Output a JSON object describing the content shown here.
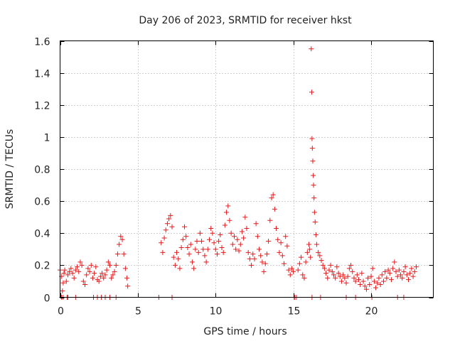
{
  "chart_data": {
    "type": "scatter",
    "title": "Day 206 of 2023, SRMTID for receiver hkst",
    "xlabel": "GPS time / hours",
    "ylabel": "SRMTID / TECUs",
    "xlim": [
      0,
      24
    ],
    "ylim": [
      0,
      1.6
    ],
    "xticks": [
      0,
      5,
      10,
      15,
      20
    ],
    "yticks": [
      0,
      0.2,
      0.4,
      0.6,
      0.8,
      1,
      1.2,
      1.4,
      1.6
    ],
    "ytick_labels": [
      "0",
      "0.2",
      "0.4",
      "0.6",
      "0.8",
      "1",
      "1.2",
      "1.4",
      "1.6"
    ],
    "grid": true,
    "marker": "plus",
    "series": [
      {
        "name": "SRMTID",
        "color": "#e41a1c",
        "points": [
          [
            0.0,
            0.17
          ],
          [
            0.1,
            0.13
          ],
          [
            0.15,
            0.04
          ],
          [
            0.2,
            0.09
          ],
          [
            0.25,
            0.15
          ],
          [
            0.3,
            0.17
          ],
          [
            0.4,
            0.1
          ],
          [
            0.5,
            0.14
          ],
          [
            0.6,
            0.16
          ],
          [
            0.7,
            0.18
          ],
          [
            0.8,
            0.15
          ],
          [
            0.9,
            0.12
          ],
          [
            1.0,
            0.17
          ],
          [
            1.1,
            0.19
          ],
          [
            1.2,
            0.16
          ],
          [
            1.3,
            0.22
          ],
          [
            1.4,
            0.2
          ],
          [
            1.5,
            0.1
          ],
          [
            1.6,
            0.08
          ],
          [
            1.7,
            0.14
          ],
          [
            1.8,
            0.18
          ],
          [
            1.9,
            0.16
          ],
          [
            2.0,
            0.2
          ],
          [
            2.1,
            0.12
          ],
          [
            2.2,
            0.15
          ],
          [
            2.3,
            0.19
          ],
          [
            2.4,
            0.11
          ],
          [
            2.5,
            0.1
          ],
          [
            2.6,
            0.13
          ],
          [
            2.7,
            0.15
          ],
          [
            2.8,
            0.12
          ],
          [
            2.9,
            0.14
          ],
          [
            3.0,
            0.17
          ],
          [
            3.1,
            0.22
          ],
          [
            3.2,
            0.2
          ],
          [
            3.3,
            0.12
          ],
          [
            3.4,
            0.14
          ],
          [
            3.5,
            0.16
          ],
          [
            3.6,
            0.2
          ],
          [
            3.7,
            0.27
          ],
          [
            3.8,
            0.33
          ],
          [
            3.9,
            0.38
          ],
          [
            4.0,
            0.36
          ],
          [
            4.1,
            0.27
          ],
          [
            4.2,
            0.18
          ],
          [
            4.3,
            0.12
          ],
          [
            4.35,
            0.07
          ],
          [
            6.5,
            0.34
          ],
          [
            6.6,
            0.28
          ],
          [
            6.7,
            0.37
          ],
          [
            6.8,
            0.42
          ],
          [
            6.9,
            0.46
          ],
          [
            7.0,
            0.49
          ],
          [
            7.1,
            0.51
          ],
          [
            7.2,
            0.44
          ],
          [
            7.3,
            0.25
          ],
          [
            7.4,
            0.2
          ],
          [
            7.5,
            0.28
          ],
          [
            7.6,
            0.24
          ],
          [
            7.7,
            0.18
          ],
          [
            7.8,
            0.31
          ],
          [
            7.9,
            0.36
          ],
          [
            8.0,
            0.44
          ],
          [
            8.1,
            0.38
          ],
          [
            8.2,
            0.31
          ],
          [
            8.3,
            0.27
          ],
          [
            8.4,
            0.33
          ],
          [
            8.5,
            0.22
          ],
          [
            8.6,
            0.18
          ],
          [
            8.7,
            0.3
          ],
          [
            8.8,
            0.35
          ],
          [
            8.9,
            0.28
          ],
          [
            9.0,
            0.4
          ],
          [
            9.1,
            0.35
          ],
          [
            9.2,
            0.3
          ],
          [
            9.3,
            0.26
          ],
          [
            9.4,
            0.22
          ],
          [
            9.5,
            0.3
          ],
          [
            9.6,
            0.36
          ],
          [
            9.7,
            0.43
          ],
          [
            9.8,
            0.4
          ],
          [
            9.9,
            0.34
          ],
          [
            10.0,
            0.3
          ],
          [
            10.1,
            0.27
          ],
          [
            10.2,
            0.35
          ],
          [
            10.3,
            0.39
          ],
          [
            10.4,
            0.31
          ],
          [
            10.5,
            0.28
          ],
          [
            10.6,
            0.45
          ],
          [
            10.7,
            0.53
          ],
          [
            10.8,
            0.57
          ],
          [
            10.9,
            0.48
          ],
          [
            11.0,
            0.4
          ],
          [
            11.1,
            0.33
          ],
          [
            11.2,
            0.38
          ],
          [
            11.3,
            0.3
          ],
          [
            11.4,
            0.36
          ],
          [
            11.5,
            0.29
          ],
          [
            11.6,
            0.33
          ],
          [
            11.7,
            0.41
          ],
          [
            11.8,
            0.37
          ],
          [
            11.9,
            0.5
          ],
          [
            12.0,
            0.43
          ],
          [
            12.1,
            0.28
          ],
          [
            12.2,
            0.24
          ],
          [
            12.3,
            0.2
          ],
          [
            12.4,
            0.27
          ],
          [
            12.5,
            0.24
          ],
          [
            12.6,
            0.46
          ],
          [
            12.7,
            0.38
          ],
          [
            12.8,
            0.3
          ],
          [
            12.9,
            0.26
          ],
          [
            13.0,
            0.22
          ],
          [
            13.1,
            0.16
          ],
          [
            13.2,
            0.21
          ],
          [
            13.3,
            0.27
          ],
          [
            13.4,
            0.35
          ],
          [
            13.5,
            0.48
          ],
          [
            13.6,
            0.62
          ],
          [
            13.7,
            0.64
          ],
          [
            13.8,
            0.55
          ],
          [
            13.9,
            0.43
          ],
          [
            14.0,
            0.36
          ],
          [
            14.1,
            0.28
          ],
          [
            14.2,
            0.34
          ],
          [
            14.3,
            0.26
          ],
          [
            14.4,
            0.21
          ],
          [
            14.5,
            0.38
          ],
          [
            14.6,
            0.32
          ],
          [
            14.7,
            0.17
          ],
          [
            14.8,
            0.14
          ],
          [
            14.9,
            0.18
          ],
          [
            15.0,
            0.16
          ],
          [
            15.3,
            0.17
          ],
          [
            15.4,
            0.21
          ],
          [
            15.5,
            0.25
          ],
          [
            15.6,
            0.14
          ],
          [
            15.7,
            0.12
          ],
          [
            15.8,
            0.22
          ],
          [
            15.9,
            0.28
          ],
          [
            16.0,
            0.33
          ],
          [
            16.05,
            0.3
          ],
          [
            16.1,
            0.25
          ],
          [
            16.15,
            1.55
          ],
          [
            16.18,
            1.28
          ],
          [
            16.2,
            0.99
          ],
          [
            16.22,
            0.93
          ],
          [
            16.25,
            0.85
          ],
          [
            16.28,
            0.76
          ],
          [
            16.3,
            0.7
          ],
          [
            16.33,
            0.62
          ],
          [
            16.36,
            0.53
          ],
          [
            16.4,
            0.47
          ],
          [
            16.45,
            0.39
          ],
          [
            16.5,
            0.33
          ],
          [
            16.6,
            0.28
          ],
          [
            16.7,
            0.26
          ],
          [
            16.8,
            0.23
          ],
          [
            16.9,
            0.2
          ],
          [
            17.0,
            0.18
          ],
          [
            17.1,
            0.15
          ],
          [
            17.2,
            0.12
          ],
          [
            17.3,
            0.17
          ],
          [
            17.4,
            0.2
          ],
          [
            17.5,
            0.16
          ],
          [
            17.6,
            0.14
          ],
          [
            17.7,
            0.12
          ],
          [
            17.8,
            0.19
          ],
          [
            17.9,
            0.15
          ],
          [
            18.0,
            0.13
          ],
          [
            18.1,
            0.1
          ],
          [
            18.2,
            0.14
          ],
          [
            18.3,
            0.12
          ],
          [
            18.4,
            0.09
          ],
          [
            18.5,
            0.13
          ],
          [
            18.6,
            0.18
          ],
          [
            18.7,
            0.2
          ],
          [
            18.8,
            0.16
          ],
          [
            18.9,
            0.12
          ],
          [
            19.0,
            0.1
          ],
          [
            19.1,
            0.14
          ],
          [
            19.2,
            0.11
          ],
          [
            19.3,
            0.08
          ],
          [
            19.4,
            0.15
          ],
          [
            19.5,
            0.1
          ],
          [
            19.6,
            0.07
          ],
          [
            19.7,
            0.05
          ],
          [
            19.8,
            0.12
          ],
          [
            19.9,
            0.08
          ],
          [
            20.0,
            0.13
          ],
          [
            20.1,
            0.18
          ],
          [
            20.2,
            0.1
          ],
          [
            20.3,
            0.06
          ],
          [
            20.4,
            0.09
          ],
          [
            20.5,
            0.12
          ],
          [
            20.6,
            0.08
          ],
          [
            20.7,
            0.14
          ],
          [
            20.8,
            0.1
          ],
          [
            20.9,
            0.16
          ],
          [
            21.0,
            0.12
          ],
          [
            21.1,
            0.17
          ],
          [
            21.2,
            0.15
          ],
          [
            21.3,
            0.11
          ],
          [
            21.4,
            0.18
          ],
          [
            21.5,
            0.22
          ],
          [
            21.6,
            0.16
          ],
          [
            21.7,
            0.13
          ],
          [
            21.8,
            0.17
          ],
          [
            21.9,
            0.14
          ],
          [
            22.0,
            0.12
          ],
          [
            22.1,
            0.16
          ],
          [
            22.2,
            0.19
          ],
          [
            22.3,
            0.14
          ],
          [
            22.4,
            0.11
          ],
          [
            22.5,
            0.15
          ],
          [
            22.6,
            0.18
          ],
          [
            22.7,
            0.13
          ],
          [
            22.8,
            0.16
          ],
          [
            22.9,
            0.19
          ],
          [
            0.1,
            0.0
          ],
          [
            0.2,
            0.0
          ],
          [
            0.45,
            0.0
          ],
          [
            0.5,
            0.0
          ],
          [
            1.0,
            0.0
          ],
          [
            2.15,
            0.0
          ],
          [
            2.4,
            0.0
          ],
          [
            2.65,
            0.0
          ],
          [
            2.9,
            0.0
          ],
          [
            3.2,
            0.0
          ],
          [
            3.6,
            0.0
          ],
          [
            6.35,
            0.0
          ],
          [
            7.2,
            0.0
          ],
          [
            15.05,
            0.0
          ],
          [
            15.1,
            0.0
          ],
          [
            15.2,
            0.0
          ],
          [
            16.2,
            0.0
          ],
          [
            16.75,
            0.0
          ],
          [
            18.4,
            0.0
          ],
          [
            19.0,
            0.0
          ],
          [
            20.05,
            0.0
          ],
          [
            21.7,
            0.0
          ],
          [
            22.1,
            0.0
          ]
        ]
      }
    ]
  }
}
